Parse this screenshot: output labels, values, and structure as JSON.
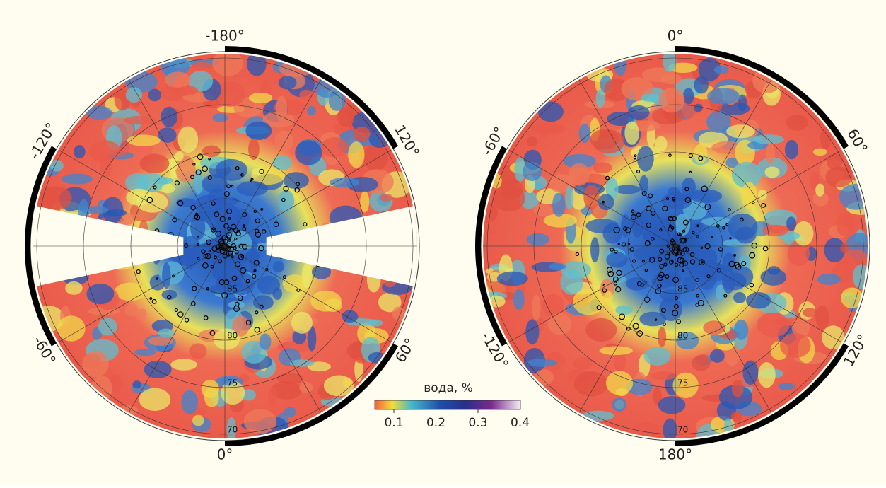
{
  "maps": [
    {
      "lon_labels": [
        "-180°",
        "120°",
        "60°",
        "0°",
        "-60°",
        "-120°"
      ],
      "lat_labels": [
        "85",
        "80",
        "75",
        "70"
      ]
    },
    {
      "lon_labels": [
        "0°",
        "60°",
        "120°",
        "180°",
        "-120°",
        "-60°"
      ],
      "lat_labels": [
        "85",
        "80",
        "75",
        "70"
      ]
    }
  ],
  "colorbar": {
    "title": "вода, %",
    "ticks": [
      "0.1",
      "0.2",
      "0.3",
      "0.4"
    ]
  }
}
